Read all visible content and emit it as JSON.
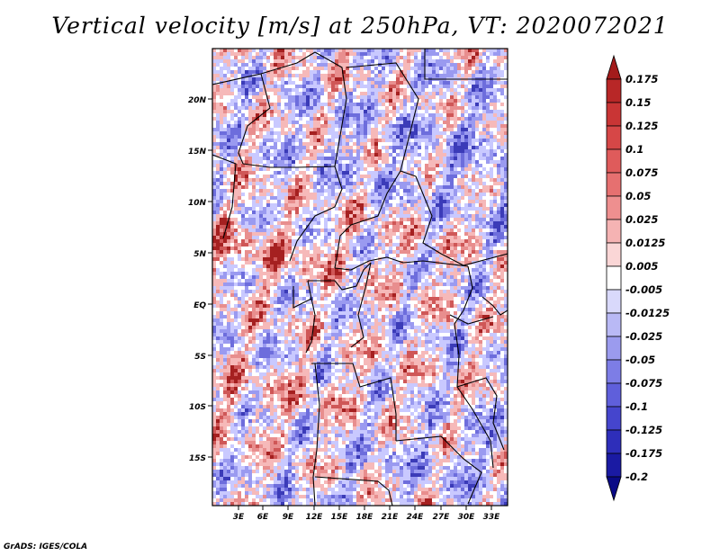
{
  "title": "Vertical velocity [m/s] at 250hPa, VT: 2020072021",
  "credit": "GrADS: IGES/COLA",
  "map": {
    "lat_labels": [
      "20N",
      "15N",
      "10N",
      "5N",
      "EQ",
      "5S",
      "10S",
      "15S"
    ],
    "lon_labels": [
      "3E",
      "6E",
      "9E",
      "12E",
      "15E",
      "18E",
      "21E",
      "24E",
      "27E",
      "30E",
      "33E"
    ],
    "field_colors": [
      "#ffffff",
      "#c9c9ff",
      "#f6b9b9",
      "#9a9af0",
      "#e88e8e",
      "#6d6ddc",
      "#cf5757",
      "#3b3bb8",
      "#a52020"
    ]
  },
  "colorbar": {
    "labels": [
      "0.175",
      "0.15",
      "0.125",
      "0.1",
      "0.075",
      "0.05",
      "0.025",
      "0.0125",
      "0.005",
      "-0.005",
      "-0.0125",
      "-0.025",
      "-0.05",
      "-0.075",
      "-0.1",
      "-0.125",
      "-0.175",
      "-0.2"
    ],
    "colors": [
      "#a31b1b",
      "#b82727",
      "#c93535",
      "#d64747",
      "#df5b5b",
      "#e67070",
      "#ee8f8f",
      "#f5b3b3",
      "#fad6d6",
      "#ffffff",
      "#d9d9fb",
      "#b9b9f5",
      "#9b9bee",
      "#7d7de6",
      "#5f5fdb",
      "#4545cd",
      "#2e2eba",
      "#1a1aa3",
      "#0a0a86"
    ]
  }
}
